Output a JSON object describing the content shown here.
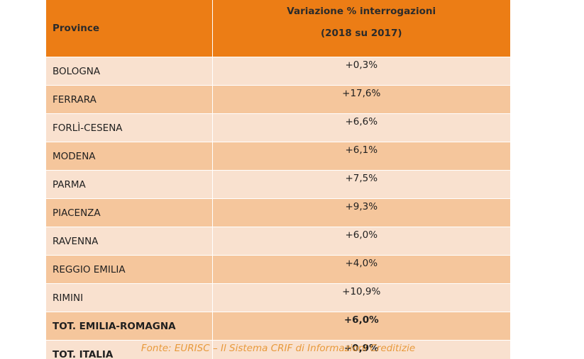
{
  "table": {
    "header": {
      "col1": "Province",
      "col2_line1": "Variazione % interrogazioni",
      "col2_line2": "(2018 su 2017)"
    },
    "rows": [
      {
        "province": "BOLOGNA",
        "value": "+0,3%"
      },
      {
        "province": "FERRARA",
        "value": "+17,6%"
      },
      {
        "province": "FORLÌ-CESENA",
        "value": "+6,6%"
      },
      {
        "province": "MODENA",
        "value": "+6,1%"
      },
      {
        "province": "PARMA",
        "value": "+7,5%"
      },
      {
        "province": "PIACENZA",
        "value": "+9,3%"
      },
      {
        "province": "RAVENNA",
        "value": "+6,0%"
      },
      {
        "province": "REGGIO EMILIA",
        "value": "+4,0%"
      },
      {
        "province": "RIMINI",
        "value": "+10,9%"
      },
      {
        "province": "TOT. EMILIA-ROMAGNA",
        "value": "+6,0%"
      },
      {
        "province": "TOT. ITALIA",
        "value": "+0,9%"
      }
    ]
  },
  "footnote": "Fonte: EURISC – Il Sistema CRIF di Informazioni Creditizie",
  "colors": {
    "header_bg": "#ec7d15",
    "row_light": "#f9e1cf",
    "row_dark": "#f5c69c",
    "footnote": "#e89a3c"
  }
}
